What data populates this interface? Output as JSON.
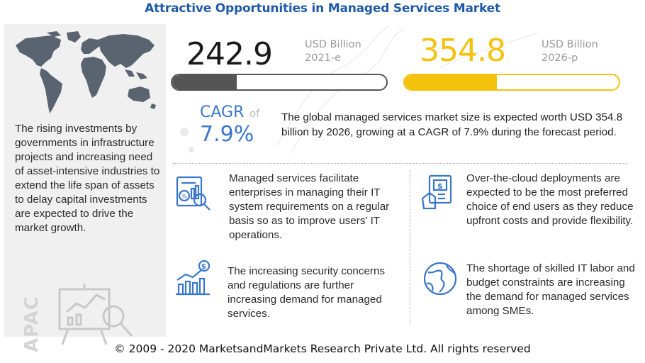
{
  "title": "Attractive Opportunities in Managed Services Market",
  "left_panel": {
    "description": "The rising investments by governments in infrastructure projects and increasing need of asset-intensive industries to extend the life span of assets to delay capital investments are expected to drive the market growth.",
    "region_label": "APAC"
  },
  "metrics": [
    {
      "value": "242.9",
      "unit": "USD Billion",
      "year": "2021-e",
      "bar_fill_fraction": 0.3,
      "color": "#555555"
    },
    {
      "value": "354.8",
      "unit": "USD Billion",
      "year": "2026-p",
      "bar_fill_fraction": 0.43,
      "color": "#f4c20d"
    }
  ],
  "cagr": {
    "label": "CAGR",
    "of": "of",
    "value": "7.9%",
    "description": "The global managed services market size is expected worth USD 354.8 billion by 2026, growing at a CAGR of 7.9% during the forecast period.",
    "color": "#3a76c9"
  },
  "points": [
    {
      "icon": "analytics-report-icon",
      "text": "Managed services facilitate enterprises in managing their IT system requirements on a regular basis so as to improve users' IT operations."
    },
    {
      "icon": "cloud-payment-icon",
      "text": "Over-the-cloud deployments are expected to be the most preferred choice of end users as they reduce upfront costs and provide flexibility."
    },
    {
      "icon": "dollar-growth-chart-icon",
      "text": "The increasing security concerns and regulations are further increasing demand for managed services."
    },
    {
      "icon": "globe-icon",
      "text": "The shortage of skilled IT labor and budget constraints are increasing the demand for managed services among SMEs."
    }
  ],
  "footer": "© 2009 - 2020 MarketsandMarkets Research Private Ltd. All rights reserved",
  "colors": {
    "title": "#1f5aa8",
    "accent_blue": "#3a76c9",
    "accent_yellow": "#f4c20d",
    "panel": "#f0f0f0"
  }
}
